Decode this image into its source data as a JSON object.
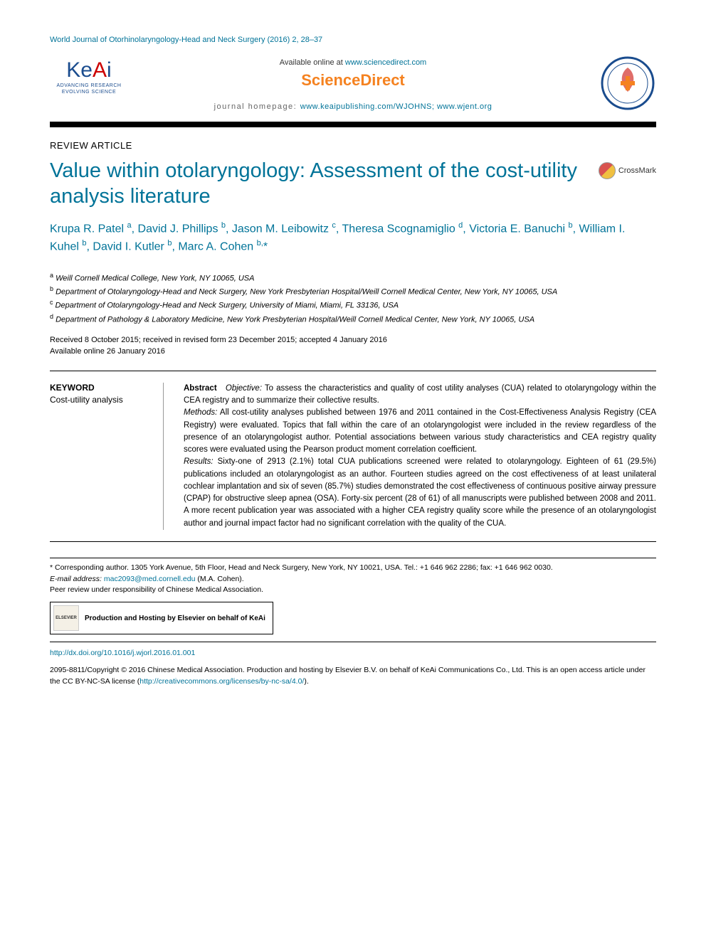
{
  "journal_ref": "World Journal of Otorhinolaryngology-Head and Neck Surgery (2016) 2, 28–37",
  "header": {
    "available_prefix": "Available online at ",
    "available_url": "www.sciencedirect.com",
    "sciencedirect": "ScienceDirect",
    "homepage_prefix": "journal homepage: ",
    "homepage_url": "www.keaipublishing.com/WJOHNS; www.wjent.org",
    "keai_tag1": "ADVANCING RESEARCH",
    "keai_tag2": "EVOLVING SCIENCE"
  },
  "article_type": "REVIEW ARTICLE",
  "title": "Value within otolaryngology: Assessment of the cost-utility analysis literature",
  "crossmark_label": "CrossMark",
  "authors_html": "Krupa R. Patel <sup>a</sup>, David J. Phillips <sup>b</sup>, Jason M. Leibowitz <sup>c</sup>, Theresa Scognamiglio <sup>d</sup>, Victoria E. Banuchi <sup>b</sup>, William I. Kuhel <sup>b</sup>, David I. Kutler <sup>b</sup>, Marc A. Cohen <sup>b,</sup><span class='star'>*</span>",
  "affiliations": [
    "a Weill Cornell Medical College, New York, NY 10065, USA",
    "b Department of Otolaryngology-Head and Neck Surgery, New York Presbyterian Hospital/Weill Cornell Medical Center, New York, NY 10065, USA",
    "c Department of Otolaryngology-Head and Neck Surgery, University of Miami, Miami, FL 33136, USA",
    "d Department of Pathology & Laboratory Medicine, New York Presbyterian Hospital/Weill Cornell Medical Center, New York, NY 10065, USA"
  ],
  "dates": {
    "received": "Received 8 October 2015; received in revised form 23 December 2015; accepted 4 January 2016",
    "online": "Available online 26 January 2016"
  },
  "keyword": {
    "heading": "KEYWORD",
    "text": "Cost-utility analysis"
  },
  "abstract": {
    "lead": "Abstract",
    "objective_label": "Objective:",
    "objective": " To assess the characteristics and quality of cost utility analyses (CUA) related to otolaryngology within the CEA registry and to summarize their collective results.",
    "methods_label": "Methods:",
    "methods": " All cost-utility analyses published between 1976 and 2011 contained in the Cost-Effectiveness Analysis Registry (CEA Registry) were evaluated. Topics that fall within the care of an otolaryngologist were included in the review regardless of the presence of an otolaryngologist author. Potential associations between various study characteristics and CEA registry quality scores were evaluated using the Pearson product moment correlation coefficient.",
    "results_label": "Results:",
    "results": " Sixty-one of 2913 (2.1%) total CUA publications screened were related to otolaryngology. Eighteen of 61 (29.5%) publications included an otolaryngologist as an author. Fourteen studies agreed on the cost effectiveness of at least unilateral cochlear implantation and six of seven (85.7%) studies demonstrated the cost effectiveness of continuous positive airway pressure (CPAP) for obstructive sleep apnea (OSA). Forty-six percent (28 of 61) of all manuscripts were published between 2008 and 2011. A more recent publication year was associated with a higher CEA registry quality score while the presence of an otolaryngologist author and journal impact factor had no significant correlation with the quality of the CUA."
  },
  "footer": {
    "corresponding": "* Corresponding author. 1305 York Avenue, 5th Floor, Head and Neck Surgery, New York, NY 10021, USA. Tel.: +1 646 962 2286; fax: +1 646 962 0030.",
    "email_label": "E-mail address: ",
    "email": "mac2093@med.cornell.edu",
    "email_suffix": " (M.A. Cohen).",
    "peer": "Peer review under responsibility of Chinese Medical Association.",
    "elsevier_box": "Production and Hosting by Elsevier on behalf of KeAi",
    "elsevier_logo": "ELSEVIER",
    "doi": "http://dx.doi.org/10.1016/j.wjorl.2016.01.001",
    "copyright": "2095-8811/Copyright © 2016 Chinese Medical Association. Production and hosting by Elsevier B.V. on behalf of KeAi Communications Co., Ltd. This is an open access article under the CC BY-NC-SA license (",
    "license_url": "http://creativecommons.org/licenses/by-nc-sa/4.0/",
    "copyright_suffix": ")."
  },
  "colors": {
    "link": "#007398",
    "orange": "#f58220",
    "keai_blue": "#1a4c8e"
  }
}
